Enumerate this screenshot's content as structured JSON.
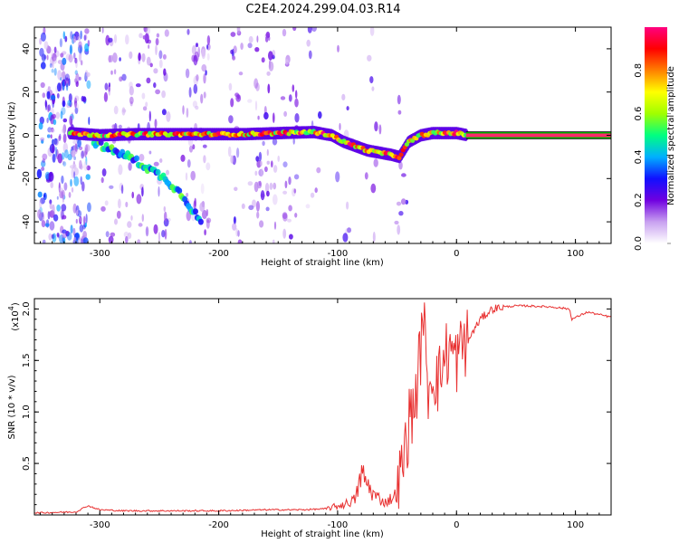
{
  "title": "C2E4.2024.299.04.03.R14",
  "chart_data": [
    {
      "type": "heatmap",
      "xlabel": "Height of straight line (km)",
      "ylabel": "Frequency (Hz)",
      "xlim": [
        -355,
        130
      ],
      "ylim": [
        -50,
        50
      ],
      "xticks": [
        -300,
        -200,
        -100,
        0,
        100
      ],
      "yticks": [
        -40,
        -20,
        0,
        20,
        40
      ],
      "grid": false,
      "signal_track": {
        "description_role": "dominant frequency ridge",
        "x": [
          -325,
          -300,
          -270,
          -240,
          -210,
          -180,
          -150,
          -120,
          -105,
          -95,
          -85,
          -75,
          -65,
          -55,
          -48,
          -40,
          -30,
          -20,
          -10,
          0,
          10,
          130
        ],
        "y": [
          1,
          0,
          0.5,
          0.5,
          0.5,
          0.5,
          1,
          1.5,
          0,
          -3,
          -5,
          -7,
          -8,
          -9,
          -10,
          -3,
          0,
          1,
          1,
          1,
          0,
          0
        ]
      },
      "secondary_track": {
        "description_role": "descending branch",
        "x": [
          -305,
          -290,
          -275,
          -260,
          -245,
          -230,
          -215
        ],
        "y": [
          -3,
          -7,
          -10,
          -15,
          -20,
          -28,
          -40
        ]
      },
      "colorbar": {
        "label": "Normalized spectral amplitude",
        "ticks": [
          0.0,
          0.2,
          0.4,
          0.6,
          0.8
        ],
        "range": [
          0,
          1
        ],
        "colors": [
          "#ffffff",
          "#c8a0f0",
          "#7000e0",
          "#1010ff",
          "#00b0ff",
          "#00ff80",
          "#a0ff00",
          "#ffff00",
          "#ff8000",
          "#ff0000",
          "#ff0080"
        ]
      }
    },
    {
      "type": "line",
      "xlabel": "Height of straight line (km)",
      "ylabel": "SNR (10 * v/v)",
      "scale_label": "(x10",
      "scale_exponent": "4",
      "xlim": [
        -355,
        130
      ],
      "ylim": [
        0,
        2.1
      ],
      "xticks": [
        -300,
        -200,
        -100,
        0,
        100
      ],
      "yticks": [
        0.5,
        1.0,
        1.5,
        2.0
      ],
      "ytick_labels": [
        "0.5",
        "1.0",
        "1.5",
        "2.0"
      ],
      "grid": false,
      "series": [
        {
          "color": "#e83030",
          "x": [
            -355,
            -320,
            -310,
            -300,
            -280,
            -250,
            -200,
            -160,
            -130,
            -110,
            -95,
            -85,
            -80,
            -70,
            -60,
            -50,
            -45,
            -40,
            -35,
            -30,
            -28,
            -25,
            -20,
            -15,
            -10,
            -5,
            0,
            5,
            10,
            20,
            30,
            40,
            50,
            60,
            80,
            95,
            97,
            110,
            130
          ],
          "y": [
            0.02,
            0.03,
            0.09,
            0.05,
            0.04,
            0.04,
            0.04,
            0.05,
            0.05,
            0.06,
            0.1,
            0.15,
            0.4,
            0.2,
            0.12,
            0.2,
            0.5,
            0.9,
            1.1,
            1.6,
            2.1,
            1.2,
            1.4,
            1.3,
            1.55,
            1.6,
            1.5,
            1.65,
            1.7,
            1.9,
            2.0,
            2.02,
            2.03,
            2.03,
            2.02,
            2.0,
            1.9,
            1.97,
            1.92
          ]
        }
      ]
    }
  ]
}
